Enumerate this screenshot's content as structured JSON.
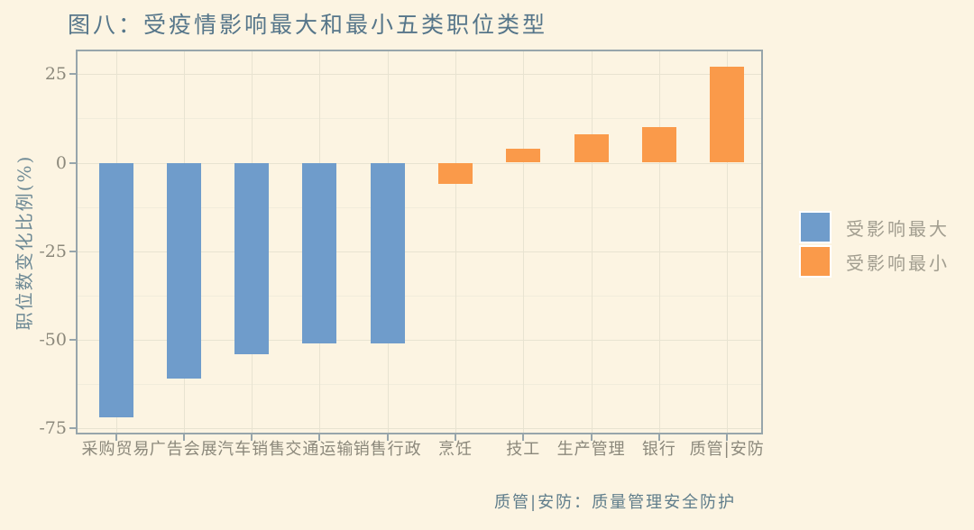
{
  "title": "图八：受疫情影响最大和最小五类职位类型",
  "y_axis_title": "职位数变化比例(%)",
  "footer_note": "质管|安防：质量管理安全防护",
  "legend": {
    "most_affected": {
      "label": "受影响最大",
      "color": "#6f9ccb"
    },
    "least_affected": {
      "label": "受影响最小",
      "color": "#fa9a4a"
    }
  },
  "colors": {
    "background": "#fcf4e2",
    "axis_border": "#97a5ab",
    "grid_major": "#e8e3d1",
    "grid_minor": "#f1ecdb",
    "tick_text": "#8b887b",
    "title_text": "#56768a"
  },
  "chart_data": {
    "type": "bar",
    "title": "图八：受疫情影响最大和最小五类职位类型",
    "xlabel": "",
    "ylabel": "职位数变化比例(%)",
    "categories": [
      "采购贸易",
      "广告会展",
      "汽车销售",
      "交通运输",
      "销售行政",
      "烹饪",
      "技工",
      "生产管理",
      "银行",
      "质管|安防"
    ],
    "values": [
      -72,
      -61,
      -54,
      -51,
      -51,
      -6,
      4,
      8,
      10,
      27
    ],
    "groups": [
      "most_affected",
      "most_affected",
      "most_affected",
      "most_affected",
      "most_affected",
      "least_affected",
      "least_affected",
      "least_affected",
      "least_affected",
      "least_affected"
    ],
    "series": [
      {
        "name": "受影响最大",
        "color": "#6f9ccb",
        "categories": [
          "采购贸易",
          "广告会展",
          "汽车销售",
          "交通运输",
          "销售行政"
        ],
        "values": [
          -72,
          -61,
          -54,
          -51,
          -51
        ]
      },
      {
        "name": "受影响最小",
        "color": "#fa9a4a",
        "categories": [
          "烹饪",
          "技工",
          "生产管理",
          "银行",
          "质管|安防"
        ],
        "values": [
          -6,
          4,
          8,
          10,
          27
        ]
      }
    ],
    "yticks": [
      25,
      0,
      -25,
      -50,
      -75
    ],
    "yticks_minor": [
      12.5,
      -12.5,
      -37.5,
      -62.5
    ],
    "ylim": [
      -77,
      32
    ],
    "grid": true,
    "legend_position": "right"
  }
}
